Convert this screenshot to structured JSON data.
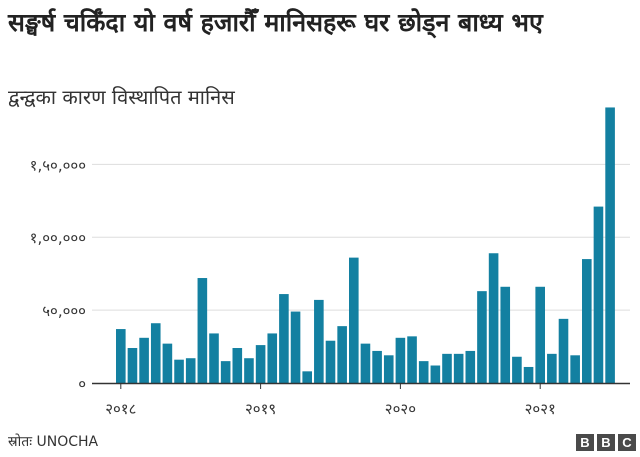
{
  "chart_data": {
    "type": "bar",
    "title": "सङ्घर्ष चर्किँदा यो वर्ष हजारौँ मानिसहरू घर छोड्न बाध्य भए",
    "subtitle": "द्वन्द्वका कारण विस्थापित मानिस",
    "xlabel": "",
    "ylabel": "",
    "ylim": [
      0,
      190000
    ],
    "y_ticks": [
      0,
      50000,
      100000,
      150000
    ],
    "y_tick_labels": [
      "०",
      "५०,०००",
      "१,००,०००",
      "१,५०,०००"
    ],
    "x_tick_labels": [
      "२०१८",
      "२०१९",
      "२०२०",
      "२०२१"
    ],
    "x_tick_bar_index": [
      0,
      12,
      24,
      36
    ],
    "grid": true,
    "bar_color": "#1380a1",
    "values": [
      37000,
      24000,
      31000,
      41000,
      27000,
      16000,
      17000,
      72000,
      34000,
      15000,
      24000,
      17000,
      26000,
      34000,
      61000,
      49000,
      8000,
      57000,
      29000,
      39000,
      86000,
      27000,
      22000,
      19000,
      31000,
      32000,
      15000,
      12000,
      20000,
      20000,
      22000,
      63000,
      89000,
      66000,
      18000,
      11000,
      66000,
      20000,
      44000,
      19000,
      85000,
      121000,
      189000
    ]
  },
  "footer": {
    "source": "स्रोतः UNOCHA",
    "logo": [
      "B",
      "B",
      "C"
    ]
  }
}
